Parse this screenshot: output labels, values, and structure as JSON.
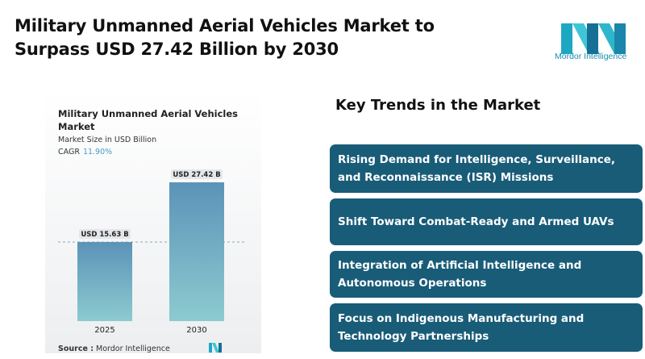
{
  "headline": "Military Unmanned Aerial Vehicles Market to Surpass USD 27.42 Billion by 2030",
  "brand": {
    "name": "Mordor Intelligence",
    "color": "#1b8fb0",
    "icon": "mordor-intelligence-logo"
  },
  "chart_panel": {
    "title": "Military Unmanned Aerial Vehicles Market",
    "subtitle": "Market Size in USD Billion",
    "cagr_label": "CAGR",
    "cagr_value": "11.90%",
    "source_label": "Source :",
    "source_value": "Mordor Intelligence"
  },
  "chart_data": {
    "type": "bar",
    "categories": [
      "2025",
      "2030"
    ],
    "values": [
      15.63,
      27.42
    ],
    "data_labels": [
      "USD 15.63 B",
      "USD 27.42 B"
    ],
    "ylim": [
      0,
      27.42
    ],
    "reference_line": 15.63,
    "bar_color_top": "#5b93b8",
    "bar_color_bottom": "#8ccbd0",
    "grid": false
  },
  "trends": {
    "title": "Key Trends in the Market",
    "items": [
      {
        "label": "Rising Demand for Intelligence, Surveillance, and Reconnaissance (ISR) Missions"
      },
      {
        "label": "Shift Toward Combat-Ready and Armed UAVs"
      },
      {
        "label": "Integration of Artificial Intelligence and Autonomous Operations"
      },
      {
        "label": "Focus on Indigenous Manufacturing and Technology Partnerships"
      }
    ],
    "box_color": "#195c78"
  }
}
